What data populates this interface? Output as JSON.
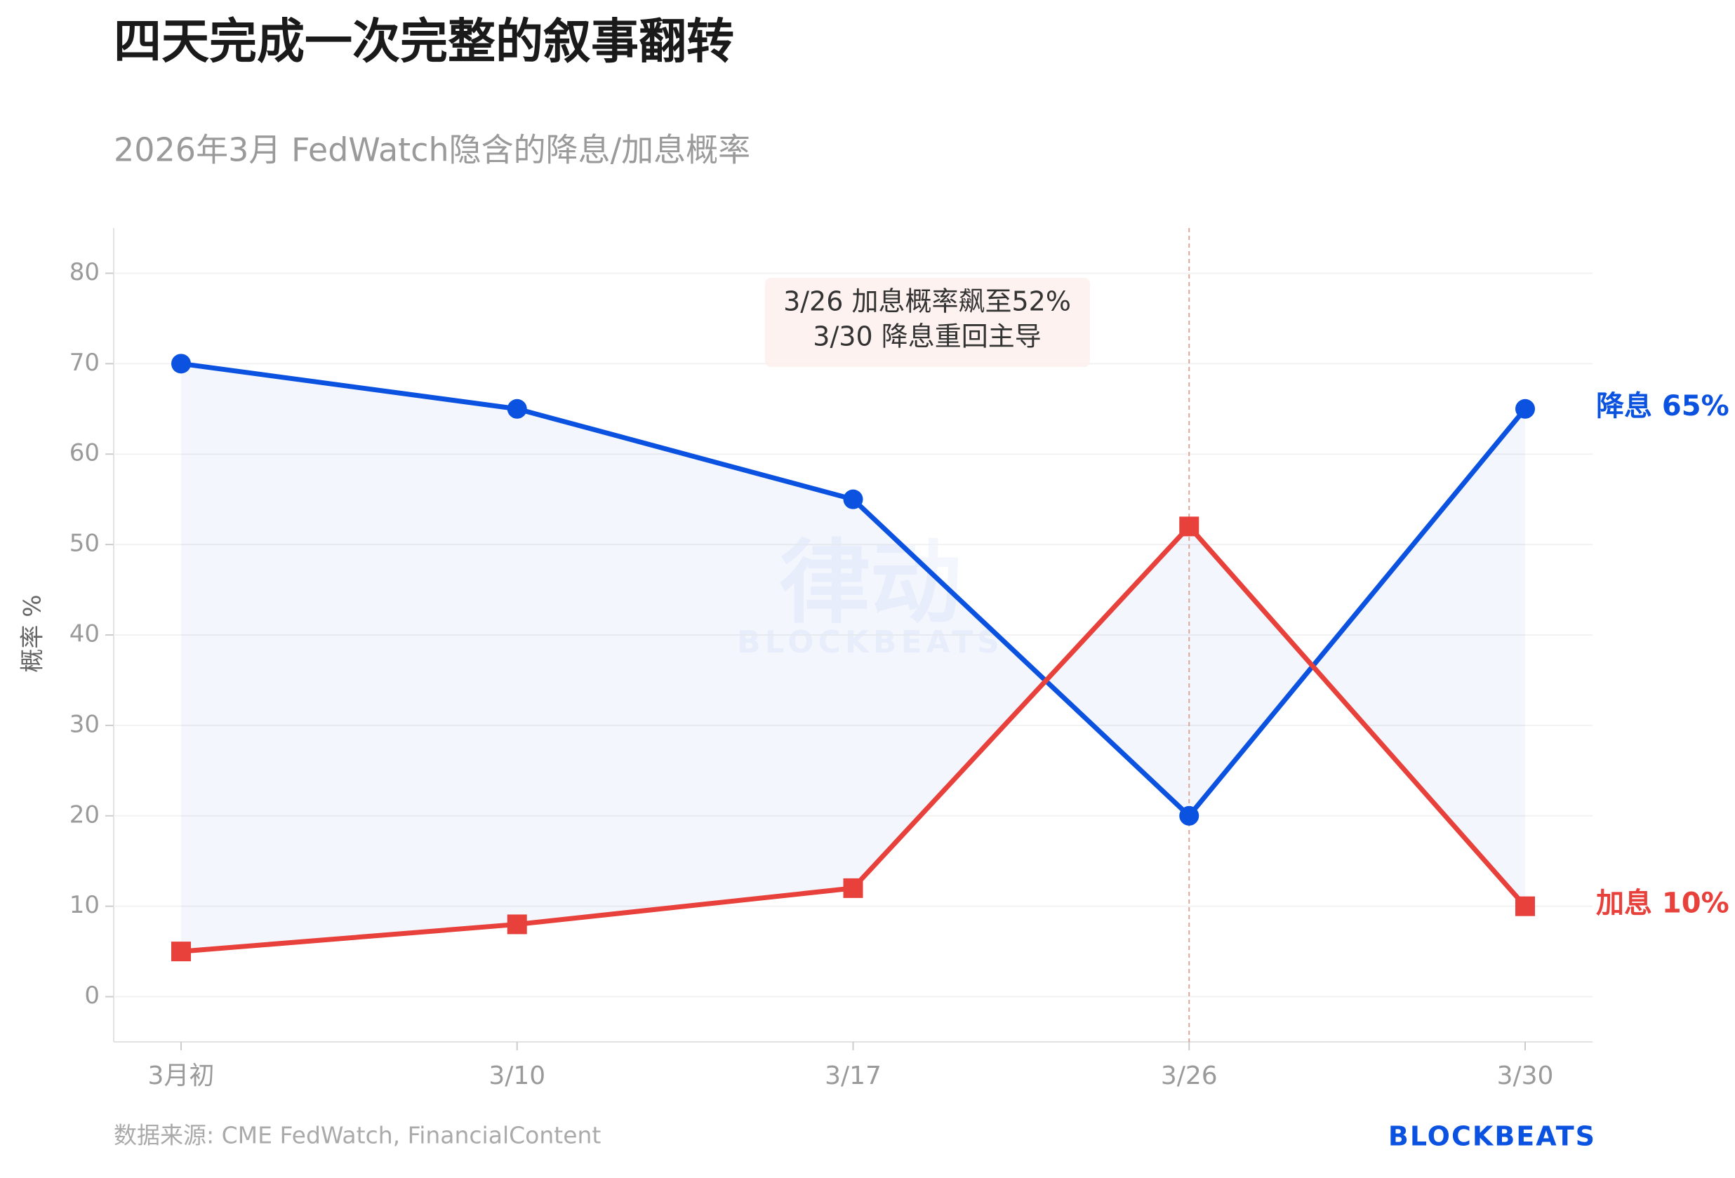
{
  "chart_data": {
    "type": "line",
    "title": "四天完成一次完整的叙事翻转",
    "subtitle": "2026年3月 FedWatch隐含的降息/加息概率",
    "y_label": "概率 %",
    "categories": [
      "3月初",
      "3/10",
      "3/17",
      "3/26",
      "3/30"
    ],
    "series": [
      {
        "name": "降息",
        "color": "#0b52e0",
        "marker": "circle",
        "values": [
          70,
          65,
          55,
          20,
          65
        ],
        "end_label": "降息 65%"
      },
      {
        "name": "加息",
        "color": "#e8403a",
        "marker": "square",
        "values": [
          5,
          8,
          12,
          52,
          10
        ],
        "end_label": "加息 10%"
      }
    ],
    "fill_between": true,
    "ylim": [
      -5,
      85
    ],
    "yticks": [
      0,
      10,
      20,
      30,
      40,
      50,
      60,
      70,
      80
    ],
    "grid": true,
    "annotation": {
      "lines": [
        "3/26 加息概率飙至52%",
        "3/30 降息重回主导"
      ],
      "at": "3/26"
    },
    "watermark": [
      "律动",
      "BLOCKBEATS"
    ],
    "source": "数据来源: CME FedWatch, FinancialContent",
    "logo": "BLOCKBEATS"
  }
}
